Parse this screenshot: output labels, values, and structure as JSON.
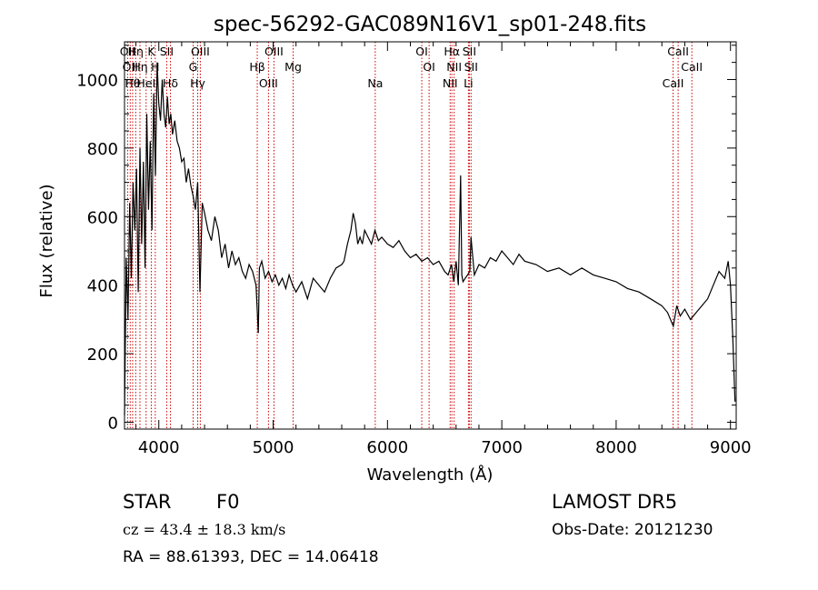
{
  "chart_data": {
    "type": "line",
    "title": "spec-56292-GAC089N16V1_sp01-248.fits",
    "xlabel": "Wavelength (Å)",
    "ylabel": "Flux (relative)",
    "xlim": [
      3700,
      9050
    ],
    "ylim": [
      -20,
      1110
    ],
    "x_ticks": [
      4000,
      5000,
      6000,
      7000,
      8000,
      9000
    ],
    "y_ticks": [
      0,
      200,
      400,
      600,
      800,
      1000
    ],
    "x_tick_labels": [
      "4000",
      "5000",
      "6000",
      "7000",
      "8000",
      "9000"
    ],
    "y_tick_labels": [
      "0",
      "200",
      "400",
      "600",
      "800",
      "1000"
    ],
    "series": [
      {
        "color": "#000000",
        "x": [
          3700,
          3715,
          3730,
          3745,
          3760,
          3775,
          3790,
          3805,
          3820,
          3835,
          3850,
          3865,
          3880,
          3895,
          3910,
          3925,
          3940,
          3955,
          3970,
          3985,
          4000,
          4015,
          4030,
          4045,
          4060,
          4075,
          4090,
          4105,
          4120,
          4140,
          4160,
          4180,
          4200,
          4220,
          4240,
          4260,
          4280,
          4300,
          4320,
          4340,
          4360,
          4380,
          4400,
          4430,
          4460,
          4490,
          4520,
          4550,
          4580,
          4610,
          4640,
          4670,
          4700,
          4730,
          4760,
          4790,
          4820,
          4850,
          4870,
          4880,
          4900,
          4930,
          4960,
          4990,
          5020,
          5050,
          5080,
          5110,
          5140,
          5170,
          5200,
          5250,
          5300,
          5350,
          5400,
          5450,
          5500,
          5550,
          5600,
          5620,
          5650,
          5680,
          5700,
          5720,
          5740,
          5760,
          5780,
          5800,
          5830,
          5860,
          5890,
          5920,
          5950,
          6000,
          6050,
          6100,
          6150,
          6200,
          6250,
          6300,
          6350,
          6400,
          6450,
          6500,
          6530,
          6560,
          6580,
          6600,
          6620,
          6640,
          6650,
          6660,
          6680,
          6700,
          6720,
          6730,
          6760,
          6800,
          6850,
          6900,
          6950,
          7000,
          7050,
          7100,
          7150,
          7200,
          7300,
          7400,
          7500,
          7600,
          7700,
          7800,
          7900,
          8000,
          8100,
          8200,
          8300,
          8400,
          8450,
          8500,
          8530,
          8560,
          8600,
          8650,
          8700,
          8750,
          8800,
          8850,
          8900,
          8950,
          8980,
          9000,
          9020,
          9040
        ],
        "y": [
          20,
          480,
          300,
          640,
          420,
          700,
          560,
          740,
          380,
          800,
          520,
          760,
          450,
          900,
          620,
          820,
          560,
          960,
          720,
          1050,
          930,
          880,
          1000,
          900,
          860,
          950,
          870,
          900,
          840,
          880,
          820,
          800,
          760,
          770,
          700,
          740,
          690,
          660,
          620,
          700,
          380,
          640,
          610,
          560,
          530,
          600,
          560,
          480,
          520,
          450,
          500,
          460,
          480,
          440,
          420,
          460,
          440,
          400,
          260,
          450,
          470,
          420,
          440,
          410,
          430,
          400,
          420,
          390,
          430,
          400,
          380,
          410,
          360,
          420,
          400,
          380,
          420,
          450,
          460,
          470,
          520,
          560,
          610,
          580,
          520,
          540,
          520,
          560,
          540,
          520,
          560,
          530,
          540,
          520,
          510,
          530,
          500,
          480,
          490,
          470,
          480,
          460,
          470,
          440,
          430,
          460,
          410,
          470,
          400,
          720,
          430,
          410,
          420,
          430,
          440,
          540,
          430,
          460,
          450,
          480,
          470,
          500,
          480,
          460,
          490,
          470,
          460,
          440,
          450,
          430,
          450,
          430,
          420,
          410,
          390,
          380,
          360,
          340,
          320,
          280,
          340,
          310,
          330,
          300,
          320,
          340,
          360,
          400,
          440,
          420,
          470,
          400,
          250,
          60
        ]
      }
    ],
    "spectral_lines": [
      {
        "x": 3727,
        "label": "OII"
      },
      {
        "x": 3750,
        "label": "OII"
      },
      {
        "x": 3771,
        "label": "Hθ"
      },
      {
        "x": 3798,
        "label": "Hη"
      },
      {
        "x": 3835,
        "label": "Hη"
      },
      {
        "x": 3889,
        "label": "HeI"
      },
      {
        "x": 3934,
        "label": "K"
      },
      {
        "x": 3969,
        "label": "H"
      },
      {
        "x": 4102,
        "label": "Hδ"
      },
      {
        "x": 4069,
        "label": "SII"
      },
      {
        "x": 4300,
        "label": "G"
      },
      {
        "x": 4340,
        "label": "Hγ"
      },
      {
        "x": 4363,
        "label": "OIII"
      },
      {
        "x": 4861,
        "label": "Hβ"
      },
      {
        "x": 4959,
        "label": "OIII"
      },
      {
        "x": 5007,
        "label": "OIII"
      },
      {
        "x": 5175,
        "label": "Mg"
      },
      {
        "x": 5893,
        "label": "Na"
      },
      {
        "x": 6300,
        "label": "OI"
      },
      {
        "x": 6364,
        "label": "OI"
      },
      {
        "x": 6548,
        "label": "NII"
      },
      {
        "x": 6563,
        "label": "Hα"
      },
      {
        "x": 6583,
        "label": "NII"
      },
      {
        "x": 6708,
        "label": "Li"
      },
      {
        "x": 6716,
        "label": "SII"
      },
      {
        "x": 6731,
        "label": "SII"
      },
      {
        "x": 8498,
        "label": "CaII"
      },
      {
        "x": 8542,
        "label": "CaII"
      },
      {
        "x": 8662,
        "label": "CaII"
      }
    ],
    "line_color": "#cc0000",
    "grid": false,
    "legend": "none"
  },
  "info": {
    "object_class": "STAR",
    "subclass": "F0",
    "survey": "LAMOST  DR5",
    "redshift": "cz = 43.4 ± 18.3 km/s",
    "obs_date": "Obs-Date: 20121230",
    "coords": "RA =  88.61393, DEC =  14.06418"
  }
}
